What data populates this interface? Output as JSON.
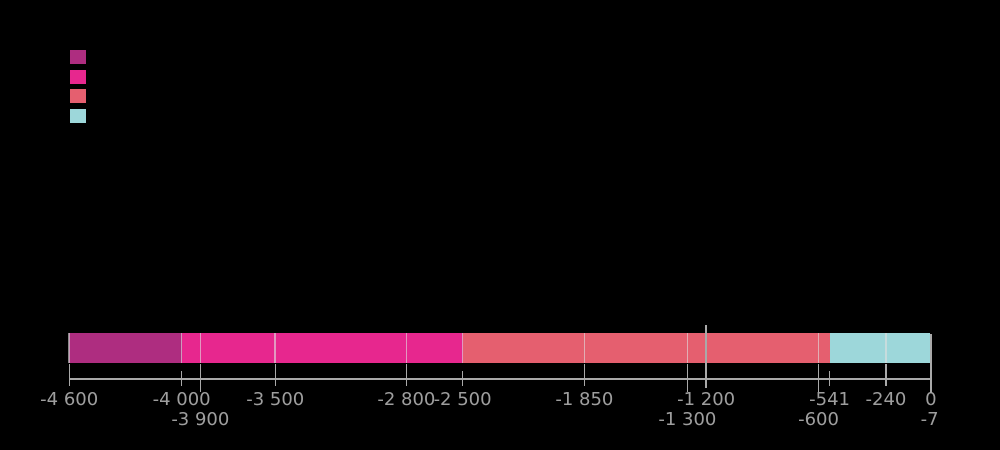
{
  "chart_data": {
    "type": "bar",
    "subtype": "horizontal-stacked-timeline",
    "title": "",
    "xlabel": "",
    "ylabel": "",
    "axis": {
      "min": -4600,
      "max": 0,
      "grid": false
    },
    "legend": {
      "position": "top-left",
      "entries": [
        {
          "label": "",
          "color": "#ae2d80"
        },
        {
          "label": "",
          "color": "#e7278e"
        },
        {
          "label": "",
          "color": "#e55f6f"
        },
        {
          "label": "",
          "color": "#9dd7da"
        }
      ]
    },
    "segments": [
      {
        "from": -4600,
        "to": -4000,
        "color": "#ae2d80"
      },
      {
        "from": -4000,
        "to": -2500,
        "color": "#e7278e"
      },
      {
        "from": -2500,
        "to": -541,
        "color": "#e55f6f"
      },
      {
        "from": -541,
        "to": -7,
        "color": "#9dd7da"
      }
    ],
    "sub_boundaries": [
      -4600,
      -4000,
      -3900,
      -3500,
      -2800,
      -2500,
      -1850,
      -1300,
      -600,
      -240
    ],
    "ticks": [
      {
        "value": -4600,
        "label": "-4 600",
        "row": 1,
        "style": "normal"
      },
      {
        "value": -4000,
        "label": "-4 000",
        "row": 1,
        "style": "short"
      },
      {
        "value": -3900,
        "label": "-3 900",
        "row": 2,
        "style": "long"
      },
      {
        "value": -3500,
        "label": "-3 500",
        "row": 1,
        "style": "normal"
      },
      {
        "value": -2800,
        "label": "-2 800",
        "row": 1,
        "style": "normal"
      },
      {
        "value": -2500,
        "label": "-2 500",
        "row": 1,
        "style": "short"
      },
      {
        "value": -1850,
        "label": "-1 850",
        "row": 1,
        "style": "normal"
      },
      {
        "value": -1300,
        "label": "-1 300",
        "row": 2,
        "style": "long"
      },
      {
        "value": -1200,
        "label": "-1 200",
        "row": 1,
        "style": "tall"
      },
      {
        "value": -600,
        "label": "-600",
        "row": 2,
        "style": "long"
      },
      {
        "value": -541,
        "label": "-541",
        "row": 1,
        "style": "short"
      },
      {
        "value": -240,
        "label": "-240",
        "row": 1,
        "style": "normal"
      },
      {
        "value": -7,
        "label": "-7",
        "row": 2,
        "style": "none"
      },
      {
        "value": 0,
        "label": "0",
        "row": 1,
        "style": "tall0"
      }
    ],
    "colors": {
      "background": "#000000",
      "axis": "#a9a9a9",
      "tick_label": "#9e9e9e",
      "divider": "#dedede"
    }
  }
}
